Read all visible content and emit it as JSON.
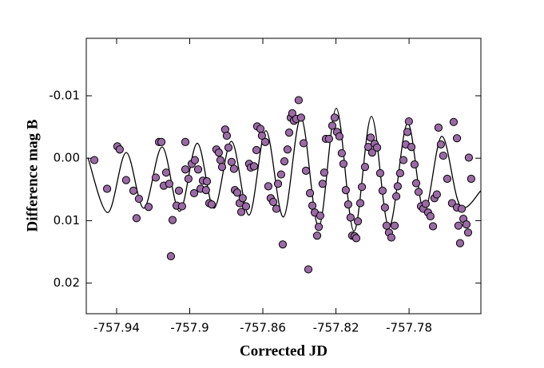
{
  "chart_data": {
    "type": "scatter",
    "xlabel": "Corrected JD",
    "ylabel": "Difference mag B",
    "xlim": [
      -757.9566,
      -757.7407
    ],
    "ylim": [
      0.0249,
      -0.0192
    ],
    "xticks": [
      -757.94,
      -757.9,
      -757.86,
      -757.82,
      -757.78
    ],
    "yticks": [
      -0.01,
      {
        "value": 0,
        "label": "0.00"
      },
      0.01,
      0.02
    ],
    "color": "#9b6aa6",
    "edge_color": "#000000",
    "x": [
      -757.9522,
      -757.9452,
      -757.9396,
      -757.9383,
      -757.9348,
      -757.9308,
      -757.9291,
      -757.9278,
      -757.9225,
      -757.9186,
      -757.9168,
      -757.9155,
      -757.9142,
      -757.9129,
      -757.9112,
      -757.9094,
      -757.9103,
      -757.9072,
      -757.9059,
      -757.9042,
      -757.9024,
      -757.9024,
      -757.9007,
      -757.8989,
      -757.8976,
      -757.8972,
      -757.8954,
      -757.8941,
      -757.8928,
      -757.8906,
      -757.8911,
      -757.8893,
      -757.888,
      -757.8854,
      -757.8841,
      -757.8832,
      -757.8823,
      -757.8806,
      -757.8797,
      -757.8788,
      -757.8771,
      -757.8758,
      -757.8753,
      -757.874,
      -757.8727,
      -757.8718,
      -757.871,
      -757.8692,
      -757.8675,
      -757.8666,
      -757.8648,
      -757.8635,
      -757.8631,
      -757.8613,
      -757.8605,
      -757.8587,
      -757.857,
      -757.8557,
      -757.8543,
      -757.8526,
      -757.8517,
      -757.85,
      -757.8491,
      -757.8482,
      -757.8465,
      -757.8456,
      -757.8447,
      -757.8439,
      -757.843,
      -757.8417,
      -757.8404,
      -757.8391,
      -757.8377,
      -757.8364,
      -757.8351,
      -757.8342,
      -757.8329,
      -757.8316,
      -757.8303,
      -757.8294,
      -757.8286,
      -757.8273,
      -757.8264,
      -757.8255,
      -757.8238,
      -757.822,
      -757.8207,
      -757.8194,
      -757.8181,
      -757.8168,
      -757.8159,
      -757.8146,
      -757.8133,
      -757.812,
      -757.8111,
      -757.8098,
      -757.8089,
      -757.808,
      -757.8067,
      -757.8058,
      -757.8041,
      -757.8023,
      -757.801,
      -757.8002,
      -757.7988,
      -757.7975,
      -757.7958,
      -757.7945,
      -757.7932,
      -757.7923,
      -757.791,
      -757.7897,
      -757.7879,
      -757.787,
      -757.7862,
      -757.7849,
      -757.7831,
      -757.7818,
      -757.7809,
      -757.7801,
      -757.7787,
      -757.777,
      -757.7761,
      -757.7748,
      -757.7735,
      -757.7722,
      -757.7709,
      -757.7696,
      -757.7683,
      -757.7669,
      -757.7661,
      -757.7648,
      -757.7639,
      -757.7626,
      -757.7613,
      -757.7591,
      -757.7565,
      -757.7538,
      -757.753,
      -757.7521,
      -757.7512,
      -757.7503,
      -757.7486,
      -757.7477,
      -757.7473,
      -757.746,
      -757.7556,
      -757.7538
    ],
    "values": [
      0.0003,
      0.0049,
      -0.0019,
      -0.0014,
      0.0035,
      0.0052,
      0.0096,
      0.0065,
      0.0078,
      0.0031,
      -0.0026,
      -0.0026,
      0.0044,
      0.0023,
      0.0041,
      0.0099,
      0.0157,
      0.0076,
      0.0052,
      0.0077,
      -0.0026,
      0.0018,
      0.0033,
      0.0009,
      0.0056,
      0.0003,
      0.0018,
      0.0049,
      0.0036,
      0.0037,
      0.0051,
      0.0072,
      0.0074,
      -0.0014,
      -0.0009,
      0.0003,
      0.0014,
      -0.0046,
      -0.0036,
      -0.0017,
      0.0006,
      0.0017,
      0.0051,
      0.0055,
      0.0072,
      0.0086,
      0.0064,
      0.0077,
      0.0009,
      0.0015,
      0.0013,
      -0.0013,
      -0.0051,
      -0.0047,
      -0.0036,
      -0.0026,
      0.0045,
      0.0064,
      0.007,
      0.0081,
      0.0041,
      0.0026,
      0.0138,
      0.0005,
      -0.0014,
      -0.0041,
      -0.0065,
      -0.0072,
      -0.006,
      -0.0063,
      -0.0093,
      -0.0065,
      -0.0024,
      0.002,
      0.0178,
      0.0056,
      0.0076,
      0.0087,
      0.0124,
      0.011,
      0.0092,
      0.0041,
      0.0023,
      -0.0031,
      -0.0031,
      -0.0052,
      -0.0065,
      -0.0042,
      -0.0035,
      -0.0008,
      0.0009,
      0.0051,
      0.0074,
      0.0095,
      0.0124,
      0.0125,
      0.0128,
      0.0101,
      0.0072,
      0.0046,
      0.0014,
      -0.0018,
      -0.0033,
      -0.0009,
      -0.0023,
      -0.0017,
      0.0024,
      0.0052,
      0.0079,
      0.0108,
      0.0119,
      0.0127,
      0.0108,
      0.0061,
      0.0045,
      0.0024,
      0.0003,
      -0.0022,
      -0.0042,
      -0.0059,
      -0.0018,
      0.001,
      0.004,
      0.0054,
      0.0077,
      0.0081,
      0.0073,
      0.0087,
      0.0093,
      0.0109,
      0.0064,
      0.0058,
      -0.0049,
      -0.0022,
      -0.0004,
      0.0033,
      0.0072,
      0.0079,
      0.0108,
      0.0136,
      0.0081,
      0.0097,
      0.0106,
      0.0119,
      -0.0001,
      0.0033,
      -0.0058,
      -0.0032
    ],
    "fit": {
      "color": "#000000",
      "x": [
        -757.9557,
        -757.9448,
        -757.9348,
        -757.9251,
        -757.9151,
        -757.9055,
        -757.8959,
        -757.8867,
        -757.8771,
        -757.8675,
        -757.8583,
        -757.8487,
        -757.8391,
        -757.8294,
        -757.8198,
        -757.8102,
        -757.8006,
        -757.791,
        -757.7809,
        -757.7718,
        -757.7621,
        -757.7521,
        -757.7407
      ],
      "values": [
        -0.0001,
        0.0087,
        -0.0009,
        0.008,
        -0.0018,
        0.0085,
        -0.0024,
        0.008,
        -0.0027,
        0.0091,
        -0.0044,
        0.0094,
        -0.0065,
        0.011,
        -0.008,
        0.0117,
        -0.0067,
        0.011,
        -0.0056,
        0.0085,
        -0.0035,
        0.0076,
        0.0052
      ]
    }
  }
}
